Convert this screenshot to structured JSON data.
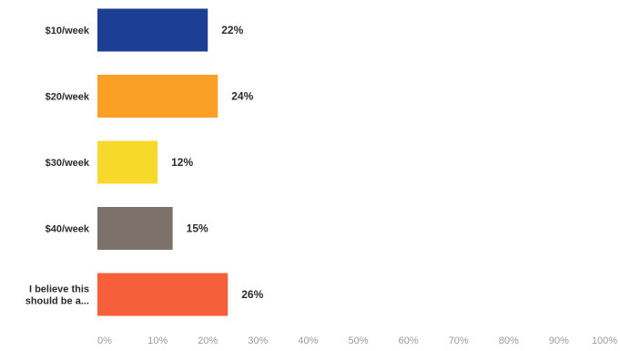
{
  "chart_data": {
    "type": "bar",
    "orientation": "horizontal",
    "categories": [
      [
        "$10/week"
      ],
      [
        "$20/week"
      ],
      [
        "$30/week"
      ],
      [
        "$40/week"
      ],
      [
        "I believe this",
        "should be a..."
      ]
    ],
    "values": [
      22,
      24,
      12,
      15,
      26
    ],
    "data_labels": [
      "22%",
      "24%",
      "12%",
      "15%",
      "26%"
    ],
    "colors": [
      "#1c3f94",
      "#fb9f25",
      "#f6d92a",
      "#7c716b",
      "#f5603a"
    ],
    "xlim": [
      0,
      100
    ],
    "x_ticks": [
      "0%",
      "10%",
      "20%",
      "30%",
      "40%",
      "50%",
      "60%",
      "70%",
      "80%",
      "90%",
      "100%"
    ],
    "grid": false,
    "legend": "none",
    "title": "",
    "xlabel": "",
    "ylabel": ""
  }
}
